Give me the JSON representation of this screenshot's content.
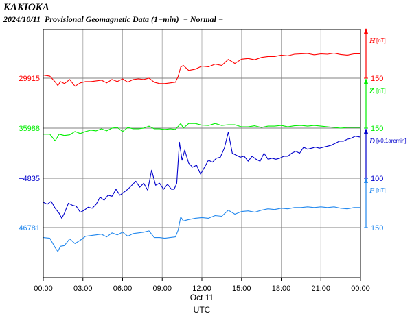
{
  "title": "KAKIOKA",
  "subtitle": "2024/10/11  Provisional Geomagnetic Data (1−min)  − Normal −",
  "chart_data": {
    "type": "line",
    "x_ticks": [
      "00:00",
      "03:00",
      "06:00",
      "09:00",
      "12:00",
      "15:00",
      "18:00",
      "21:00",
      "00:00"
    ],
    "date_label": "Oct 11",
    "xlabel": "UTC",
    "x_range_hours": [
      0,
      24
    ],
    "grid": true,
    "series": [
      {
        "name": "H",
        "unit": "[nT]",
        "color": "#ff0000",
        "baseline_label": "29915",
        "scale_label": "150",
        "scale_nT_per_division": 150,
        "x_hours": [
          0,
          0.5,
          0.9,
          1.1,
          1.3,
          1.6,
          2.0,
          2.4,
          2.8,
          3.2,
          3.6,
          4.0,
          4.4,
          4.8,
          5.2,
          5.6,
          6.0,
          6.4,
          6.8,
          7.2,
          7.6,
          8.0,
          8.4,
          8.8,
          9.2,
          9.6,
          10.0,
          10.2,
          10.4,
          10.6,
          11.0,
          11.5,
          12.0,
          12.5,
          13.0,
          13.5,
          14.0,
          14.5,
          15.0,
          15.5,
          16.0,
          16.5,
          17.0,
          17.5,
          18.0,
          18.5,
          19.0,
          19.5,
          20.0,
          20.5,
          21.0,
          21.5,
          22.0,
          22.5,
          23.0,
          23.5,
          24.0
        ],
        "values": [
          9,
          6,
          -11,
          -22,
          -10,
          -16,
          -4,
          -24,
          -14,
          -10,
          -10,
          -8,
          -6,
          -14,
          -4,
          -10,
          -2,
          -12,
          -4,
          -2,
          -4,
          0,
          -12,
          -16,
          -16,
          -14,
          -12,
          5,
          33,
          38,
          23,
          27,
          36,
          34,
          42,
          38,
          56,
          44,
          57,
          59,
          55,
          62,
          65,
          65,
          69,
          67,
          72,
          73,
          74,
          70,
          73,
          72,
          75,
          71,
          69,
          73,
          73
        ]
      },
      {
        "name": "Z",
        "unit": "[nT]",
        "color": "#00ee00",
        "baseline_label": "35988",
        "scale_label": "150",
        "scale_nT_per_division": 150,
        "x_hours": [
          0,
          0.5,
          0.9,
          1.2,
          1.6,
          2.0,
          2.4,
          2.8,
          3.2,
          3.6,
          4.0,
          4.4,
          4.8,
          5.2,
          5.6,
          6.0,
          6.4,
          6.8,
          7.2,
          7.6,
          8.0,
          8.4,
          8.8,
          9.2,
          9.6,
          10.0,
          10.4,
          10.6,
          11.0,
          11.5,
          12.0,
          12.5,
          13.0,
          13.5,
          14.0,
          14.5,
          15.0,
          15.5,
          16.0,
          16.5,
          17.0,
          17.5,
          18.0,
          18.5,
          19.0,
          19.5,
          20.0,
          20.5,
          21.0,
          21.5,
          22.0,
          22.5,
          23.0,
          23.5,
          24.0
        ],
        "values": [
          -18,
          -18,
          -38,
          -18,
          -22,
          -20,
          -10,
          -16,
          -10,
          -6,
          -8,
          -2,
          -8,
          0,
          2,
          -10,
          2,
          -2,
          -2,
          0,
          6,
          -2,
          -2,
          -4,
          -2,
          -4,
          14,
          0,
          14,
          14,
          9,
          8,
          14,
          8,
          10,
          10,
          4,
          4,
          7,
          2,
          6,
          6,
          8,
          4,
          7,
          8,
          6,
          8,
          6,
          4,
          2,
          0,
          2,
          2,
          2
        ]
      },
      {
        "name": "D",
        "unit": "[x0.1arcmin]",
        "color": "#0000cc",
        "baseline_label": "−4835",
        "scale_label": "100",
        "scale_per_division": 100,
        "x_hours": [
          0,
          0.3,
          0.6,
          0.9,
          1.2,
          1.4,
          1.6,
          1.9,
          2.2,
          2.5,
          2.8,
          3.1,
          3.4,
          3.7,
          4.0,
          4.3,
          4.6,
          4.9,
          5.2,
          5.5,
          5.8,
          6.1,
          6.4,
          6.7,
          7.0,
          7.3,
          7.6,
          7.9,
          8.2,
          8.5,
          8.8,
          9.1,
          9.4,
          9.7,
          9.9,
          10.1,
          10.3,
          10.5,
          10.7,
          11.0,
          11.3,
          11.6,
          11.9,
          12.2,
          12.5,
          12.8,
          13.1,
          13.4,
          13.7,
          14.0,
          14.3,
          14.6,
          14.9,
          15.2,
          15.5,
          15.8,
          16.1,
          16.4,
          16.7,
          17.0,
          17.3,
          17.6,
          17.9,
          18.2,
          18.5,
          18.8,
          19.1,
          19.4,
          19.7,
          20.0,
          20.3,
          20.6,
          20.9,
          21.2,
          21.5,
          21.8,
          22.1,
          22.4,
          22.7,
          23.0,
          23.3,
          23.6,
          24.0
        ],
        "values": [
          -48,
          -52,
          -46,
          -60,
          -70,
          -80,
          -70,
          -50,
          -54,
          -56,
          -68,
          -64,
          -58,
          -60,
          -52,
          -38,
          -44,
          -34,
          -36,
          -22,
          -34,
          -28,
          -22,
          -14,
          -6,
          -18,
          -10,
          -24,
          16,
          -14,
          -10,
          -22,
          -12,
          -22,
          -22,
          -10,
          72,
          36,
          56,
          30,
          22,
          26,
          8,
          22,
          36,
          32,
          40,
          42,
          60,
          92,
          50,
          46,
          42,
          44,
          34,
          44,
          38,
          34,
          50,
          38,
          40,
          38,
          40,
          44,
          44,
          50,
          54,
          50,
          62,
          58,
          60,
          62,
          60,
          62,
          64,
          66,
          70,
          74,
          74,
          78,
          80,
          84,
          82
        ]
      },
      {
        "name": "F",
        "unit": "[nT]",
        "color": "#2288ee",
        "baseline_label": "46781",
        "scale_label": "150",
        "scale_nT_per_division": 150,
        "x_hours": [
          0,
          0.5,
          0.9,
          1.1,
          1.3,
          1.6,
          2.0,
          2.4,
          2.8,
          3.2,
          3.6,
          4.0,
          4.4,
          4.8,
          5.2,
          5.6,
          6.0,
          6.4,
          6.8,
          7.2,
          7.6,
          8.0,
          8.4,
          8.8,
          9.2,
          9.6,
          10.0,
          10.2,
          10.4,
          10.6,
          11.0,
          11.5,
          12.0,
          12.5,
          13.0,
          13.5,
          14.0,
          14.5,
          15.0,
          15.5,
          16.0,
          16.5,
          17.0,
          17.5,
          18.0,
          18.5,
          19.0,
          19.5,
          20.0,
          20.5,
          21.0,
          21.5,
          22.0,
          22.5,
          23.0,
          23.5,
          24.0
        ],
        "values": [
          -30,
          -32,
          -60,
          -72,
          -56,
          -54,
          -34,
          -48,
          -38,
          -26,
          -24,
          -22,
          -20,
          -28,
          -16,
          -22,
          -14,
          -26,
          -18,
          -16,
          -14,
          -10,
          -30,
          -30,
          -32,
          -30,
          -28,
          -8,
          32,
          20,
          24,
          28,
          30,
          28,
          36,
          34,
          52,
          40,
          48,
          50,
          46,
          52,
          56,
          54,
          58,
          56,
          60,
          60,
          62,
          60,
          62,
          60,
          62,
          58,
          56,
          60,
          60
        ]
      }
    ]
  }
}
